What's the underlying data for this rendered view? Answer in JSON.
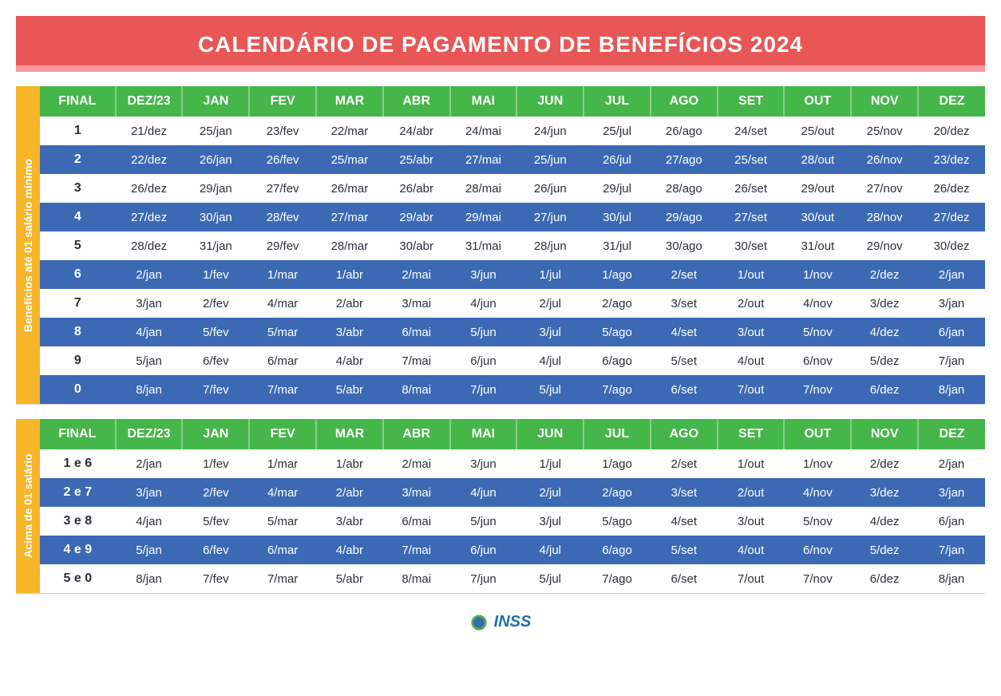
{
  "title": "CALENDÁRIO DE PAGAMENTO DE BENEFÍCIOS 2024",
  "colors": {
    "title_bg": "#e85656",
    "title_accent": "#f59a9a",
    "header_bg": "#45b649",
    "side_bg": "#f7b52a",
    "row_alt": "#3b69b3",
    "row_base": "#ffffff",
    "text_dark": "#1f2a44",
    "logo_text": "#1e6fa8"
  },
  "columns": [
    "FINAL",
    "DEZ/23",
    "JAN",
    "FEV",
    "MAR",
    "ABR",
    "MAI",
    "JUN",
    "JUL",
    "AGO",
    "SET",
    "OUT",
    "NOV",
    "DEZ"
  ],
  "table1": {
    "side_label": "Benefícios até 01 salário mínimo",
    "rows": [
      {
        "final": "1",
        "cells": [
          "21/dez",
          "25/jan",
          "23/fev",
          "22/mar",
          "24/abr",
          "24/mai",
          "24/jun",
          "25/jul",
          "26/ago",
          "24/set",
          "25/out",
          "25/nov",
          "20/dez"
        ]
      },
      {
        "final": "2",
        "cells": [
          "22/dez",
          "26/jan",
          "26/fev",
          "25/mar",
          "25/abr",
          "27/mai",
          "25/jun",
          "26/jul",
          "27/ago",
          "25/set",
          "28/out",
          "26/nov",
          "23/dez"
        ]
      },
      {
        "final": "3",
        "cells": [
          "26/dez",
          "29/jan",
          "27/fev",
          "26/mar",
          "26/abr",
          "28/mai",
          "26/jun",
          "29/jul",
          "28/ago",
          "26/set",
          "29/out",
          "27/nov",
          "26/dez"
        ]
      },
      {
        "final": "4",
        "cells": [
          "27/dez",
          "30/jan",
          "28/fev",
          "27/mar",
          "29/abr",
          "29/mai",
          "27/jun",
          "30/jul",
          "29/ago",
          "27/set",
          "30/out",
          "28/nov",
          "27/dez"
        ]
      },
      {
        "final": "5",
        "cells": [
          "28/dez",
          "31/jan",
          "29/fev",
          "28/mar",
          "30/abr",
          "31/mai",
          "28/jun",
          "31/jul",
          "30/ago",
          "30/set",
          "31/out",
          "29/nov",
          "30/dez"
        ]
      },
      {
        "final": "6",
        "cells": [
          "2/jan",
          "1/fev",
          "1/mar",
          "1/abr",
          "2/mai",
          "3/jun",
          "1/jul",
          "1/ago",
          "2/set",
          "1/out",
          "1/nov",
          "2/dez",
          "2/jan"
        ]
      },
      {
        "final": "7",
        "cells": [
          "3/jan",
          "2/fev",
          "4/mar",
          "2/abr",
          "3/mai",
          "4/jun",
          "2/jul",
          "2/ago",
          "3/set",
          "2/out",
          "4/nov",
          "3/dez",
          "3/jan"
        ]
      },
      {
        "final": "8",
        "cells": [
          "4/jan",
          "5/fev",
          "5/mar",
          "3/abr",
          "6/mai",
          "5/jun",
          "3/jul",
          "5/ago",
          "4/set",
          "3/out",
          "5/nov",
          "4/dez",
          "6/jan"
        ]
      },
      {
        "final": "9",
        "cells": [
          "5/jan",
          "6/fev",
          "6/mar",
          "4/abr",
          "7/mai",
          "6/jun",
          "4/jul",
          "6/ago",
          "5/set",
          "4/out",
          "6/nov",
          "5/dez",
          "7/jan"
        ]
      },
      {
        "final": "0",
        "cells": [
          "8/jan",
          "7/fev",
          "7/mar",
          "5/abr",
          "8/mai",
          "7/jun",
          "5/jul",
          "7/ago",
          "6/set",
          "7/out",
          "7/nov",
          "6/dez",
          "8/jan"
        ]
      }
    ]
  },
  "table2": {
    "side_label": "Acima de 01 salário",
    "rows": [
      {
        "final": "1 e 6",
        "cells": [
          "2/jan",
          "1/fev",
          "1/mar",
          "1/abr",
          "2/mai",
          "3/jun",
          "1/jul",
          "1/ago",
          "2/set",
          "1/out",
          "1/nov",
          "2/dez",
          "2/jan"
        ]
      },
      {
        "final": "2 e 7",
        "cells": [
          "3/jan",
          "2/fev",
          "4/mar",
          "2/abr",
          "3/mai",
          "4/jun",
          "2/jul",
          "2/ago",
          "3/set",
          "2/out",
          "4/nov",
          "3/dez",
          "3/jan"
        ]
      },
      {
        "final": "3 e 8",
        "cells": [
          "4/jan",
          "5/fev",
          "5/mar",
          "3/abr",
          "6/mai",
          "5/jun",
          "3/jul",
          "5/ago",
          "4/set",
          "3/out",
          "5/nov",
          "4/dez",
          "6/jan"
        ]
      },
      {
        "final": "4 e 9",
        "cells": [
          "5/jan",
          "6/fev",
          "6/mar",
          "4/abr",
          "7/mai",
          "6/jun",
          "4/jul",
          "6/ago",
          "5/set",
          "4/out",
          "6/nov",
          "5/dez",
          "7/jan"
        ]
      },
      {
        "final": "5 e 0",
        "cells": [
          "8/jan",
          "7/fev",
          "7/mar",
          "5/abr",
          "8/mai",
          "7/jun",
          "5/jul",
          "7/ago",
          "6/set",
          "7/out",
          "7/nov",
          "6/dez",
          "8/jan"
        ]
      }
    ]
  },
  "footer": {
    "logo_text": "INSS"
  }
}
